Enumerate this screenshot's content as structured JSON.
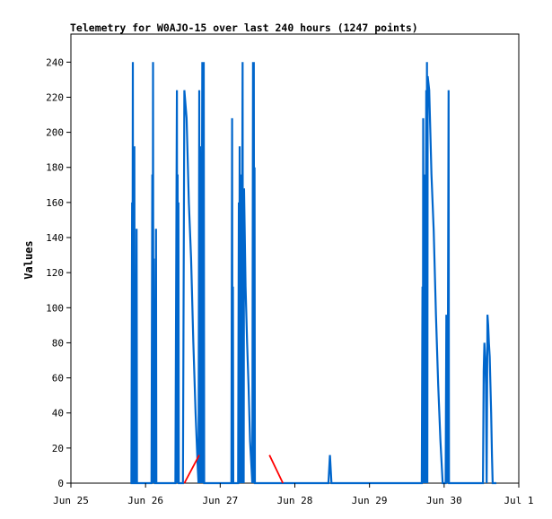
{
  "chart_data": {
    "type": "line",
    "title": "Telemetry for W0AJO-15 over last 240 hours (1247 points)",
    "xlabel": "",
    "ylabel": "Values",
    "x_ticks": [
      "Jun 25",
      "Jun 26",
      "Jun 27",
      "Jun 28",
      "Jun 29",
      "Jun 30",
      "Jul 1"
    ],
    "x_range": [
      "Jun 25 00:00",
      "Jul 1 00:00"
    ],
    "y_ticks": [
      0,
      20,
      40,
      60,
      80,
      100,
      120,
      140,
      160,
      180,
      200,
      220,
      240
    ],
    "ylim": [
      0,
      256
    ],
    "grid": false,
    "legend": "none",
    "colors": {
      "series_primary": "#0066cc",
      "series_secondary": "#ff0000",
      "axis": "#000000"
    },
    "series": [
      {
        "color": "#0066cc",
        "x_units": "days since Jun 25 00:00",
        "points": [
          [
            0.8,
            0
          ],
          [
            0.81,
            0
          ],
          [
            0.82,
            160
          ],
          [
            0.823,
            0
          ],
          [
            0.83,
            240
          ],
          [
            0.835,
            0
          ],
          [
            0.84,
            0
          ],
          [
            0.85,
            192
          ],
          [
            0.855,
            0
          ],
          [
            0.87,
            0
          ],
          [
            0.88,
            145
          ],
          [
            0.885,
            0
          ],
          [
            0.9,
            0
          ],
          [
            1.0,
            0
          ],
          [
            1.08,
            0
          ],
          [
            1.09,
            176
          ],
          [
            1.095,
            0
          ],
          [
            1.1,
            240
          ],
          [
            1.105,
            0
          ],
          [
            1.11,
            128
          ],
          [
            1.115,
            0
          ],
          [
            1.12,
            64
          ],
          [
            1.125,
            0
          ],
          [
            1.13,
            0
          ],
          [
            1.14,
            145
          ],
          [
            1.145,
            0
          ],
          [
            1.15,
            0
          ],
          [
            1.3,
            0
          ],
          [
            1.4,
            0
          ],
          [
            1.42,
            224
          ],
          [
            1.425,
            0
          ],
          [
            1.43,
            176
          ],
          [
            1.435,
            0
          ],
          [
            1.44,
            160
          ],
          [
            1.445,
            0
          ],
          [
            1.45,
            0
          ],
          [
            1.5,
            0
          ],
          [
            1.52,
            224
          ],
          [
            1.55,
            208
          ],
          [
            1.58,
            160
          ],
          [
            1.61,
            128
          ],
          [
            1.64,
            80
          ],
          [
            1.67,
            40
          ],
          [
            1.7,
            8
          ],
          [
            1.71,
            0
          ],
          [
            1.72,
            224
          ],
          [
            1.725,
            0
          ],
          [
            1.73,
            192
          ],
          [
            1.735,
            0
          ],
          [
            1.74,
            176
          ],
          [
            1.745,
            0
          ],
          [
            1.76,
            240
          ],
          [
            1.765,
            0
          ],
          [
            1.77,
            32
          ],
          [
            1.775,
            0
          ],
          [
            1.78,
            240
          ],
          [
            1.785,
            0
          ],
          [
            1.8,
            0
          ],
          [
            2.0,
            0
          ],
          [
            2.15,
            0
          ],
          [
            2.16,
            208
          ],
          [
            2.165,
            0
          ],
          [
            2.17,
            112
          ],
          [
            2.175,
            0
          ],
          [
            2.18,
            0
          ],
          [
            2.24,
            0
          ],
          [
            2.25,
            160
          ],
          [
            2.255,
            0
          ],
          [
            2.26,
            192
          ],
          [
            2.265,
            0
          ],
          [
            2.28,
            176
          ],
          [
            2.285,
            0
          ],
          [
            2.3,
            240
          ],
          [
            2.305,
            0
          ],
          [
            2.31,
            48
          ],
          [
            2.315,
            0
          ],
          [
            2.32,
            168
          ],
          [
            2.34,
            112
          ],
          [
            2.36,
            80
          ],
          [
            2.38,
            56
          ],
          [
            2.4,
            24
          ],
          [
            2.42,
            8
          ],
          [
            2.43,
            0
          ],
          [
            2.44,
            240
          ],
          [
            2.445,
            0
          ],
          [
            2.45,
            240
          ],
          [
            2.455,
            0
          ],
          [
            2.46,
            180
          ],
          [
            2.465,
            0
          ],
          [
            2.47,
            0
          ],
          [
            2.5,
            0
          ],
          [
            3.0,
            0
          ],
          [
            3.45,
            0
          ],
          [
            3.47,
            16
          ],
          [
            3.49,
            0
          ],
          [
            3.6,
            0
          ],
          [
            4.0,
            0
          ],
          [
            4.5,
            0
          ],
          [
            4.7,
            0
          ],
          [
            4.71,
            112
          ],
          [
            4.715,
            0
          ],
          [
            4.72,
            208
          ],
          [
            4.725,
            0
          ],
          [
            4.73,
            176
          ],
          [
            4.735,
            0
          ],
          [
            4.74,
            120
          ],
          [
            4.745,
            0
          ],
          [
            4.76,
            224
          ],
          [
            4.765,
            0
          ],
          [
            4.77,
            240
          ],
          [
            4.775,
            0
          ],
          [
            4.78,
            232
          ],
          [
            4.8,
            224
          ],
          [
            4.83,
            176
          ],
          [
            4.86,
            144
          ],
          [
            4.89,
            96
          ],
          [
            4.92,
            56
          ],
          [
            4.95,
            24
          ],
          [
            4.98,
            0
          ],
          [
            5.0,
            0
          ],
          [
            5.02,
            0
          ],
          [
            5.03,
            96
          ],
          [
            5.035,
            0
          ],
          [
            5.04,
            64
          ],
          [
            5.045,
            0
          ],
          [
            5.06,
            224
          ],
          [
            5.065,
            0
          ],
          [
            5.08,
            0
          ],
          [
            5.2,
            0
          ],
          [
            5.5,
            0
          ],
          [
            5.52,
            0
          ],
          [
            5.53,
            64
          ],
          [
            5.54,
            80
          ],
          [
            5.55,
            72
          ],
          [
            5.56,
            56
          ],
          [
            5.57,
            0
          ],
          [
            5.58,
            96
          ],
          [
            5.59,
            90
          ],
          [
            5.6,
            80
          ],
          [
            5.61,
            72
          ],
          [
            5.62,
            56
          ],
          [
            5.63,
            40
          ],
          [
            5.64,
            16
          ],
          [
            5.65,
            0
          ],
          [
            5.7,
            0
          ]
        ]
      },
      {
        "color": "#ff0000",
        "x_units": "days since Jun 25 00:00",
        "points": [
          [
            1.52,
            0
          ],
          [
            1.72,
            16
          ]
        ]
      },
      {
        "color": "#ff0000",
        "x_units": "days since Jun 25 00:00",
        "points": [
          [
            2.66,
            16
          ],
          [
            2.84,
            0
          ]
        ]
      }
    ]
  }
}
